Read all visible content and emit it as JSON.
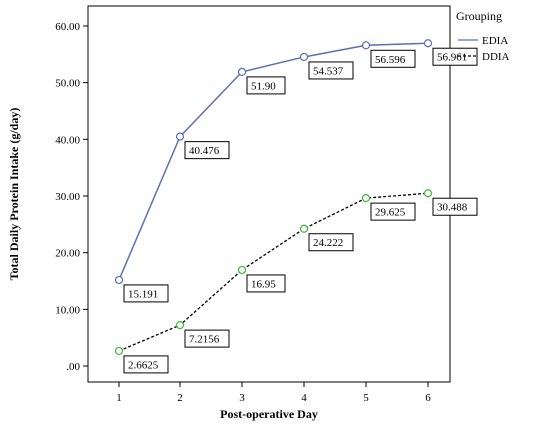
{
  "chart_data": {
    "type": "line",
    "x": [
      1,
      2,
      3,
      4,
      5,
      6
    ],
    "xlabel": "Post-operative Day",
    "ylabel": "Total Daily Protein Intake (g/day)",
    "ylim": [
      0,
      60
    ],
    "yticks": [
      0,
      10,
      20,
      30,
      40,
      50,
      60
    ],
    "ytick_labels": [
      ".00",
      "10.00",
      "20.00",
      "30.00",
      "40.00",
      "50.00",
      "60.00"
    ],
    "xticks": [
      "1",
      "2",
      "3",
      "4",
      "5",
      "6"
    ],
    "legend_title": "Grouping",
    "legend_position": "right",
    "series": [
      {
        "name": "EDIA",
        "values": [
          15.191,
          40.476,
          51.9,
          54.537,
          56.596,
          56.961
        ],
        "labels": [
          "15.191",
          "40.476",
          "51.90",
          "54.537",
          "56.596",
          "56.961"
        ],
        "color": "#5a6fb4",
        "line_style": "solid"
      },
      {
        "name": "DDIA",
        "values": [
          2.6625,
          7.2156,
          16.95,
          24.222,
          29.625,
          30.488
        ],
        "labels": [
          "2.6625",
          "7.2156",
          "16.95",
          "24.222",
          "29.625",
          "30.488"
        ],
        "color": "#000000",
        "marker_color": "#3cb83c",
        "line_style": "dashed"
      }
    ]
  }
}
